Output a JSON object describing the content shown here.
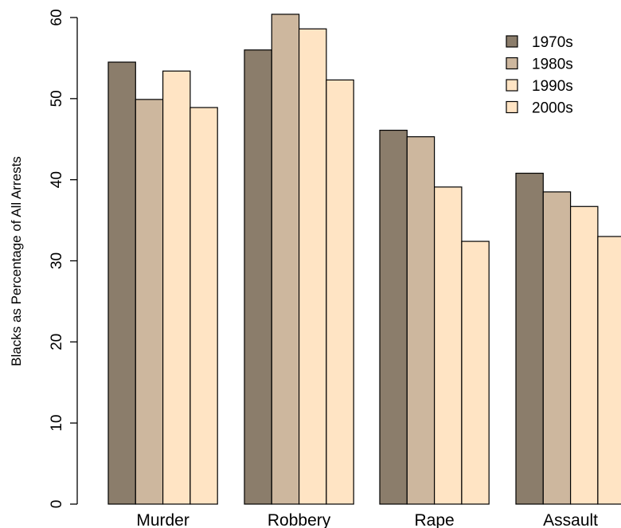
{
  "chart_data": {
    "type": "bar",
    "categories": [
      "Murder",
      "Robbery",
      "Rape",
      "Assault"
    ],
    "series": [
      {
        "name": "1970s",
        "color": "#8b7d6b",
        "values": [
          54.5,
          56.0,
          46.1,
          40.8
        ]
      },
      {
        "name": "1980s",
        "color": "#cdb79e",
        "values": [
          49.9,
          60.4,
          45.3,
          38.5
        ]
      },
      {
        "name": "1990s",
        "color": "#ffe4c4",
        "values": [
          53.4,
          58.6,
          39.1,
          36.7
        ]
      },
      {
        "name": "2000s",
        "color": "#ffe4c4",
        "values": [
          48.9,
          52.3,
          32.4,
          33.0
        ]
      }
    ],
    "title": "",
    "xlabel": "",
    "ylabel": "Blacks as Percentage of All Arrests",
    "ylim": [
      0,
      60
    ],
    "yticks": [
      0,
      10,
      20,
      30,
      40,
      50,
      60
    ],
    "grid": false,
    "legend_position": "top-right"
  }
}
